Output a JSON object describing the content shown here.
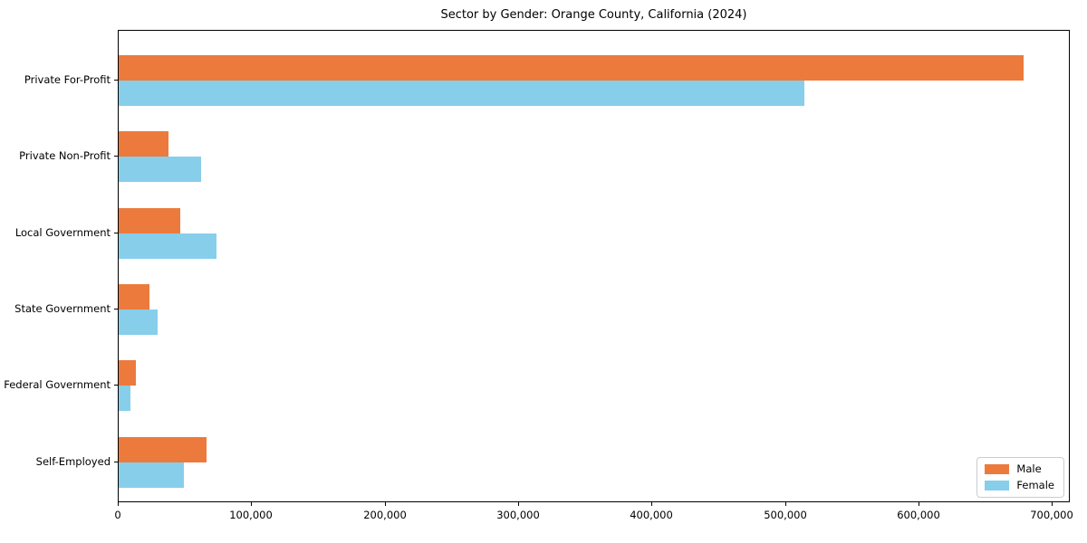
{
  "title": "Sector by Gender: Orange County, California (2024)",
  "chart_data": {
    "type": "bar",
    "orientation": "horizontal",
    "title": "Sector by Gender: Orange County, California (2024)",
    "xlabel": "",
    "ylabel": "",
    "categories": [
      "Private For-Profit",
      "Private Non-Profit",
      "Local Government",
      "State Government",
      "Federal Government",
      "Self-Employed"
    ],
    "series": [
      {
        "name": "Male",
        "color": "#ec7a3c",
        "values": [
          678000,
          37000,
          46000,
          23000,
          13000,
          66000
        ]
      },
      {
        "name": "Female",
        "color": "#87ceeb",
        "values": [
          514000,
          62000,
          73000,
          29000,
          9000,
          49000
        ]
      }
    ],
    "xlim": [
      0,
      712000
    ],
    "x_ticks": [
      0,
      100000,
      200000,
      300000,
      400000,
      500000,
      600000,
      700000
    ],
    "x_tick_labels": [
      "0",
      "100,000",
      "200,000",
      "300,000",
      "400,000",
      "500,000",
      "600,000",
      "700,000"
    ],
    "legend_position": "lower right",
    "grid": false
  },
  "legend": {
    "items": [
      {
        "label": "Male",
        "color": "#ec7a3c"
      },
      {
        "label": "Female",
        "color": "#87ceeb"
      }
    ]
  }
}
